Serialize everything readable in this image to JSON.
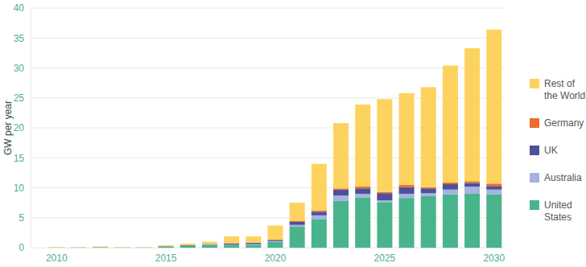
{
  "chart_data": {
    "type": "bar",
    "stacked": true,
    "grid": true,
    "legend": "right",
    "y_label": "GW per year",
    "categories": [
      "2010",
      null,
      null,
      null,
      null,
      "2015",
      null,
      null,
      null,
      null,
      "2020",
      null,
      null,
      null,
      null,
      "2025",
      null,
      null,
      null,
      null,
      "2030"
    ],
    "ylim": [
      0,
      40
    ],
    "yticks": [
      0,
      5,
      10,
      15,
      20,
      25,
      30,
      35,
      40
    ],
    "series": [
      {
        "name": "United States",
        "color": "#49b48c",
        "values": [
          0.05,
          0.05,
          0.1,
          0.05,
          0.05,
          0.2,
          0.3,
          0.4,
          0.4,
          0.5,
          1.0,
          3.5,
          4.7,
          7.8,
          8.4,
          7.6,
          8.3,
          8.6,
          8.9,
          9.0,
          8.9
        ]
      },
      {
        "name": "Australia",
        "color": "#a4b3df",
        "values": [
          0,
          0,
          0,
          0,
          0,
          0,
          0,
          0.1,
          0.1,
          0.1,
          0.1,
          0.3,
          0.7,
          0.9,
          0.6,
          0.3,
          0.7,
          0.5,
          0.8,
          1.2,
          0.8
        ]
      },
      {
        "name": "UK",
        "color": "#4c519a",
        "values": [
          0,
          0,
          0,
          0,
          0,
          0.05,
          0.1,
          0.1,
          0.2,
          0.2,
          0.2,
          0.5,
          0.6,
          1.0,
          0.9,
          1.2,
          1.1,
          0.8,
          0.9,
          0.6,
          0.6
        ]
      },
      {
        "name": "Germany",
        "color": "#ef6b2c",
        "values": [
          0,
          0,
          0,
          0,
          0,
          0,
          0,
          0,
          0.05,
          0.05,
          0.05,
          0.2,
          0.2,
          0.2,
          0.3,
          0.2,
          0.4,
          0.2,
          0.3,
          0.3,
          0.4
        ]
      },
      {
        "name": "Rest of the World",
        "color": "#fdd35f",
        "values": [
          0.05,
          0.05,
          0.1,
          0.05,
          0.05,
          0.15,
          0.3,
          0.4,
          1.15,
          1.05,
          2.35,
          3.0,
          7.8,
          10.9,
          13.7,
          15.5,
          15.3,
          16.7,
          19.5,
          22.2,
          25.7
        ]
      }
    ]
  }
}
